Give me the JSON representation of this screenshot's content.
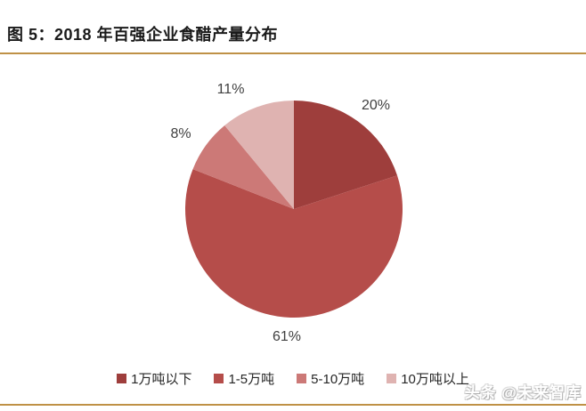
{
  "figure": {
    "title": "图 5：2018 年百强企业食醋产量分布",
    "rule_color": "#bf9146"
  },
  "chart_data": {
    "type": "pie",
    "title": "2018 年百强企业食醋产量分布",
    "categories": [
      "1万吨以下",
      "1-5万吨",
      "5-10万吨",
      "10万吨以上"
    ],
    "values": [
      20,
      61,
      8,
      11
    ],
    "unit": "%",
    "labels": [
      "20%",
      "61%",
      "8%",
      "11%"
    ],
    "colors": [
      "#9e3e3c",
      "#b54d4a",
      "#cc7977",
      "#dfb3b1"
    ],
    "start_angle_deg": 0,
    "direction": "clockwise",
    "legend_position": "bottom",
    "label_color": "#3f3f3f"
  },
  "watermark": {
    "text": "头条 @未来智库"
  }
}
